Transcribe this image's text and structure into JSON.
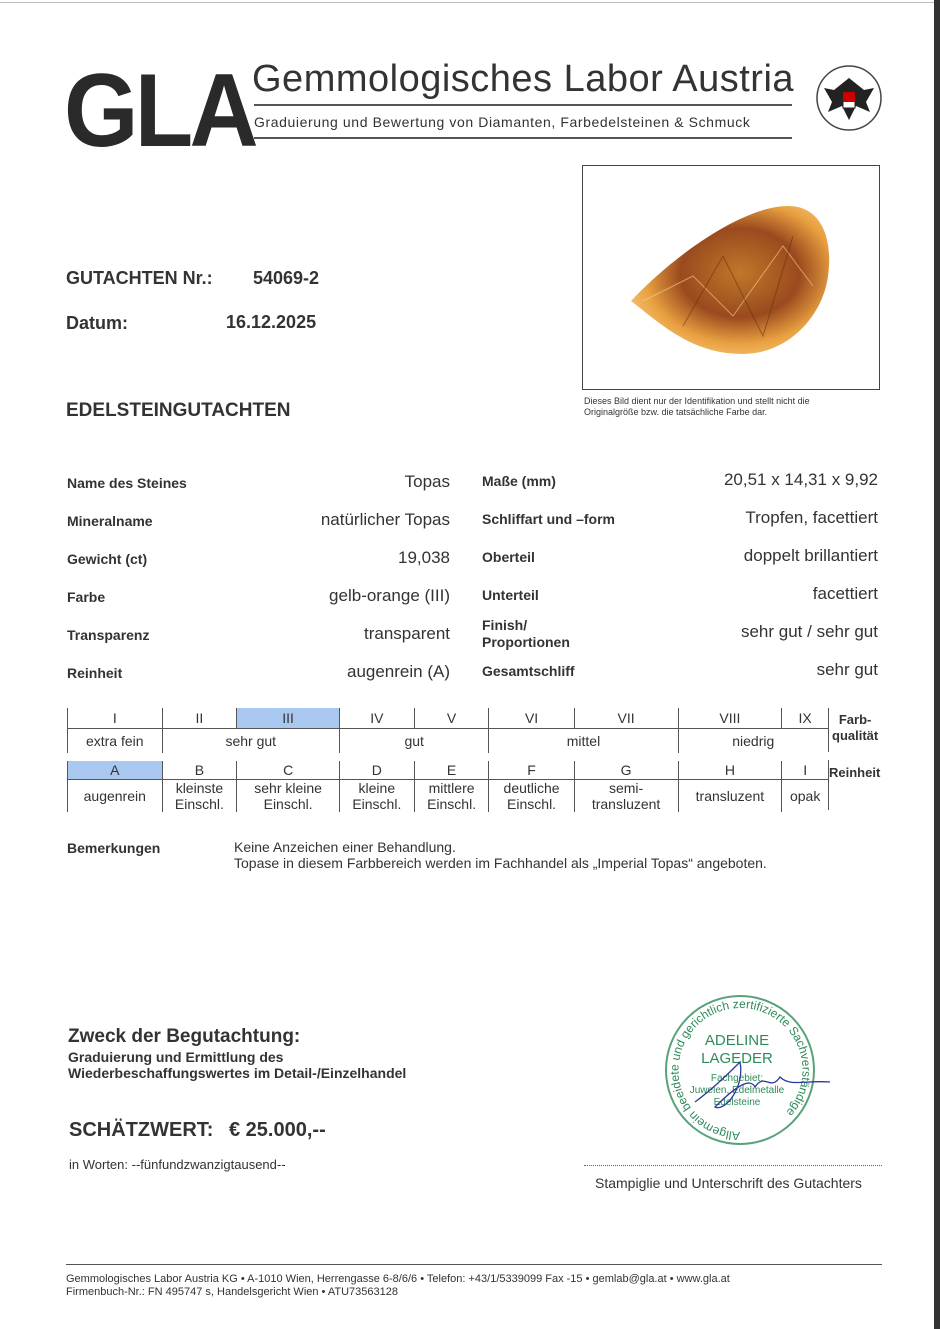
{
  "header": {
    "logo": "GLA",
    "title": "Gemmologisches Labor Austria",
    "subtitle": "Graduierung und Bewertung von Diamanten, Farbedelsteinen & Schmuck",
    "emblem_icon": "austrian-eagle-seal"
  },
  "report": {
    "number_label": "GUTACHTEN Nr.:",
    "number": "54069-2",
    "date_label": "Datum:",
    "date": "16.12.2025",
    "type": "EDELSTEINGUTACHTEN"
  },
  "photo": {
    "caption": "Dieses Bild dient nur der Identifikation und stellt nicht die Originalgröße bzw. die tatsächliche Farbe dar."
  },
  "left_fields": [
    {
      "label": "Name des Steines",
      "value": "Topas"
    },
    {
      "label": "Mineralname",
      "value": "natürlicher Topas"
    },
    {
      "label": "Gewicht (ct)",
      "value": "19,038"
    },
    {
      "label": "Farbe",
      "value": "gelb-orange (III)"
    },
    {
      "label": "Transparenz",
      "value": "transparent"
    },
    {
      "label": "Reinheit",
      "value": "augenrein (A)"
    }
  ],
  "right_fields": [
    {
      "label": "Maße (mm)",
      "value": "20,51 x 14,31 x 9,92"
    },
    {
      "label": "Schliffart und –form",
      "value": "Tropfen, facettiert"
    },
    {
      "label": "Oberteil",
      "value": "doppelt brillantiert"
    },
    {
      "label": "Unterteil",
      "value": "facettiert"
    },
    {
      "label": "Finish/\nProportionen",
      "value": "sehr gut / sehr gut"
    },
    {
      "label": "Gesamtschliff",
      "value": "sehr gut"
    }
  ],
  "color_scale": {
    "label": "Farb-\nqualität",
    "grades": [
      "I",
      "II",
      "III",
      "IV",
      "V",
      "VI",
      "VII",
      "VIII",
      "IX"
    ],
    "selected": "III",
    "groups": [
      "extra fein",
      "sehr gut",
      "gut",
      "mittel",
      "niedrig"
    ]
  },
  "clarity_scale": {
    "label": "Reinheit",
    "grades": [
      "A",
      "B",
      "C",
      "D",
      "E",
      "F",
      "G",
      "H",
      "I"
    ],
    "selected": "A",
    "descriptions": [
      "augenrein",
      "kleinste\nEinschl.",
      "sehr kleine\nEinschl.",
      "kleine\nEinschl.",
      "mittlere\nEinschl.",
      "deutliche\nEinschl.",
      "semi-\ntransluzent",
      "transluzent",
      "opak"
    ]
  },
  "remarks": {
    "label": "Bemerkungen",
    "lines": [
      "Keine Anzeichen einer Behandlung.",
      "Topase in diesem Farbbereich werden im Fachhandel als „Imperial Topas“ angeboten."
    ]
  },
  "purpose": {
    "title": "Zweck der Begutachtung:",
    "lines": [
      "Graduierung und Ermittlung des",
      "Wiederbeschaffungswertes im Detail-/Einzelhandel"
    ]
  },
  "valuation": {
    "label": "SCHÄTZWERT:",
    "value": "€ 25.000,--",
    "words": "in Worten: --fünfundzwanzigtausend--"
  },
  "stamp": {
    "ring_text": "Allgemein beeidete und gerichtlich zertifizierte Sachverständige",
    "name1": "ADELINE",
    "name2": "LAGEDER",
    "field1": "Fachgebiet:",
    "field2": "Juwelen, Edelmetalle",
    "field3": "Edelsteine",
    "color": "#2e8b57"
  },
  "signature_label": "Stampiglie und Unterschrift des Gutachters",
  "footer": {
    "line1": "Gemmologisches Labor Austria KG  •  A-1010 Wien, Herrengasse 6-8/6/6  •  Telefon: +43/1/5339099 Fax -15  •  gemlab@gla.at  •  www.gla.at",
    "line2": "Firmenbuch-Nr.: FN 495747 s, Handelsgericht Wien  •  ATU73563128"
  }
}
